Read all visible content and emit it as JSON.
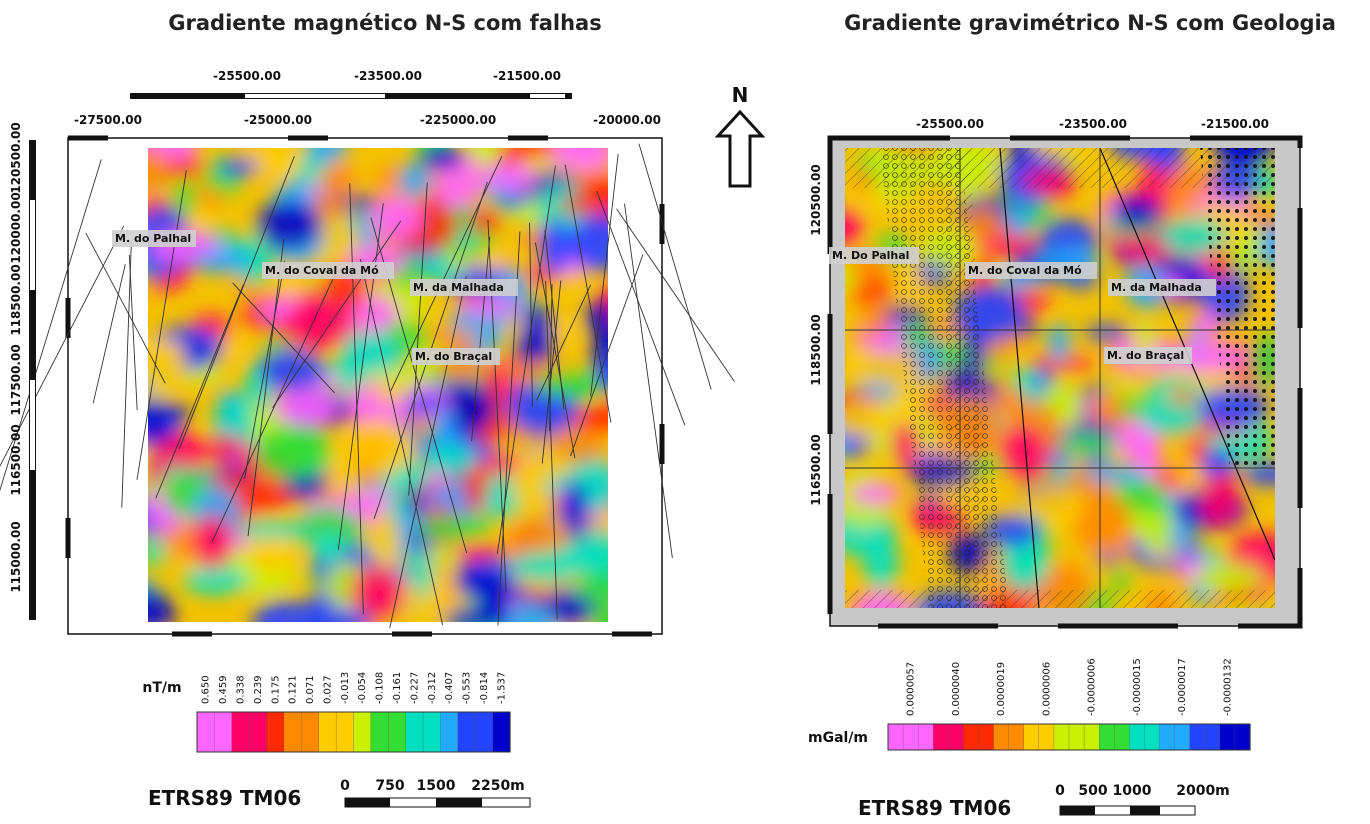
{
  "left": {
    "title": "Gradiente magnético N-S com falhas",
    "top_ticks": [
      "-25500.00",
      "-23500.00",
      "-21500.00"
    ],
    "frame_ticks": [
      "-27500.00",
      "-25000.00",
      "-225000.00",
      "-20000.00"
    ],
    "y_ticks": [
      "120500.00",
      "120000.00",
      "118500.00",
      "117500.00",
      "116500.00",
      "115000.00"
    ],
    "places": [
      "M. do Palhal",
      "M. do Coval  da Mó",
      "M. da Malhada",
      "M. do Braçal"
    ],
    "legend": {
      "unit": "nT/m",
      "labels": [
        "0.650",
        "0.459",
        "0.338",
        "0.239",
        "0.175",
        "0.121",
        "0.071",
        "0.027",
        "-0.013",
        "-0.054",
        "-0.108",
        "-0.161",
        "-0.227",
        "-0.312",
        "-0.407",
        "-0.553",
        "-0.814",
        "-1.537"
      ]
    },
    "crs": "ETRS89 TM06",
    "scale": [
      "0",
      "750",
      "1500",
      "2250m"
    ]
  },
  "north": "N",
  "right": {
    "title": "Gradiente gravimétrico N-S com Geologia",
    "top_ticks": [
      "-25500.00",
      "-23500.00",
      "-21500.00"
    ],
    "y_ticks": [
      "120500.00",
      "118500.00",
      "116500.00"
    ],
    "places": [
      "M. Do Palhal",
      "M. do Coval  da Mó",
      "M. da Malhada",
      "M. do Braçal"
    ],
    "legend": {
      "unit": "mGal/m",
      "labels": [
        "0.0000057",
        "0.0000040",
        "0.0000019",
        "0.0000006",
        "-0.0000006",
        "-0.0000015",
        "-0.0000017",
        "-0.0000132"
      ]
    },
    "crs": "ETRS89 TM06",
    "scale": [
      "0",
      "500",
      "1000",
      "2000m"
    ]
  }
}
